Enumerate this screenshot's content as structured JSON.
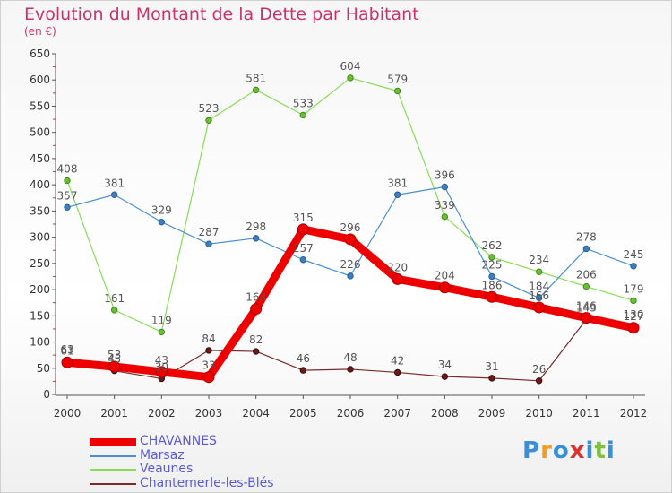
{
  "header": {
    "title": "Evolution du Montant de la Dette par Habitant",
    "unit": "(en €)"
  },
  "logo": {
    "text": "Proxiti",
    "colors": [
      "#3a8fd8",
      "#f0a020",
      "#3a8fd8",
      "#e03030",
      "#3a8fd8",
      "#7cc040",
      "#3a8fd8"
    ]
  },
  "chart_data": {
    "type": "line",
    "x": [
      "2000",
      "2001",
      "2002",
      "2003",
      "2004",
      "2005",
      "2006",
      "2007",
      "2008",
      "2009",
      "2010",
      "2011",
      "2012"
    ],
    "ylim": [
      0,
      650
    ],
    "yticks": [
      0,
      50,
      100,
      150,
      200,
      250,
      300,
      350,
      400,
      450,
      500,
      550,
      600,
      650
    ],
    "grid": false,
    "legend_position": "bottom-left",
    "series": [
      {
        "name": "CHAVANNES",
        "color": "#ee0000",
        "values": [
          61,
          53,
          43,
          33,
          163,
          315,
          296,
          220,
          204,
          186,
          166,
          146,
          127
        ]
      },
      {
        "name": "Marsaz",
        "color": "#4a90d0",
        "values": [
          357,
          381,
          329,
          287,
          298,
          257,
          226,
          381,
          396,
          225,
          184,
          278,
          245
        ]
      },
      {
        "name": "Veaunes",
        "color": "#88dd55",
        "values": [
          408,
          161,
          119,
          523,
          581,
          533,
          604,
          579,
          339,
          262,
          234,
          206,
          179
        ]
      },
      {
        "name": "Chantemerle-les-Blés",
        "color": "#7a2a2a",
        "values": [
          63,
          45,
          30,
          84,
          82,
          46,
          48,
          42,
          34,
          31,
          26,
          143,
          130
        ]
      }
    ]
  }
}
